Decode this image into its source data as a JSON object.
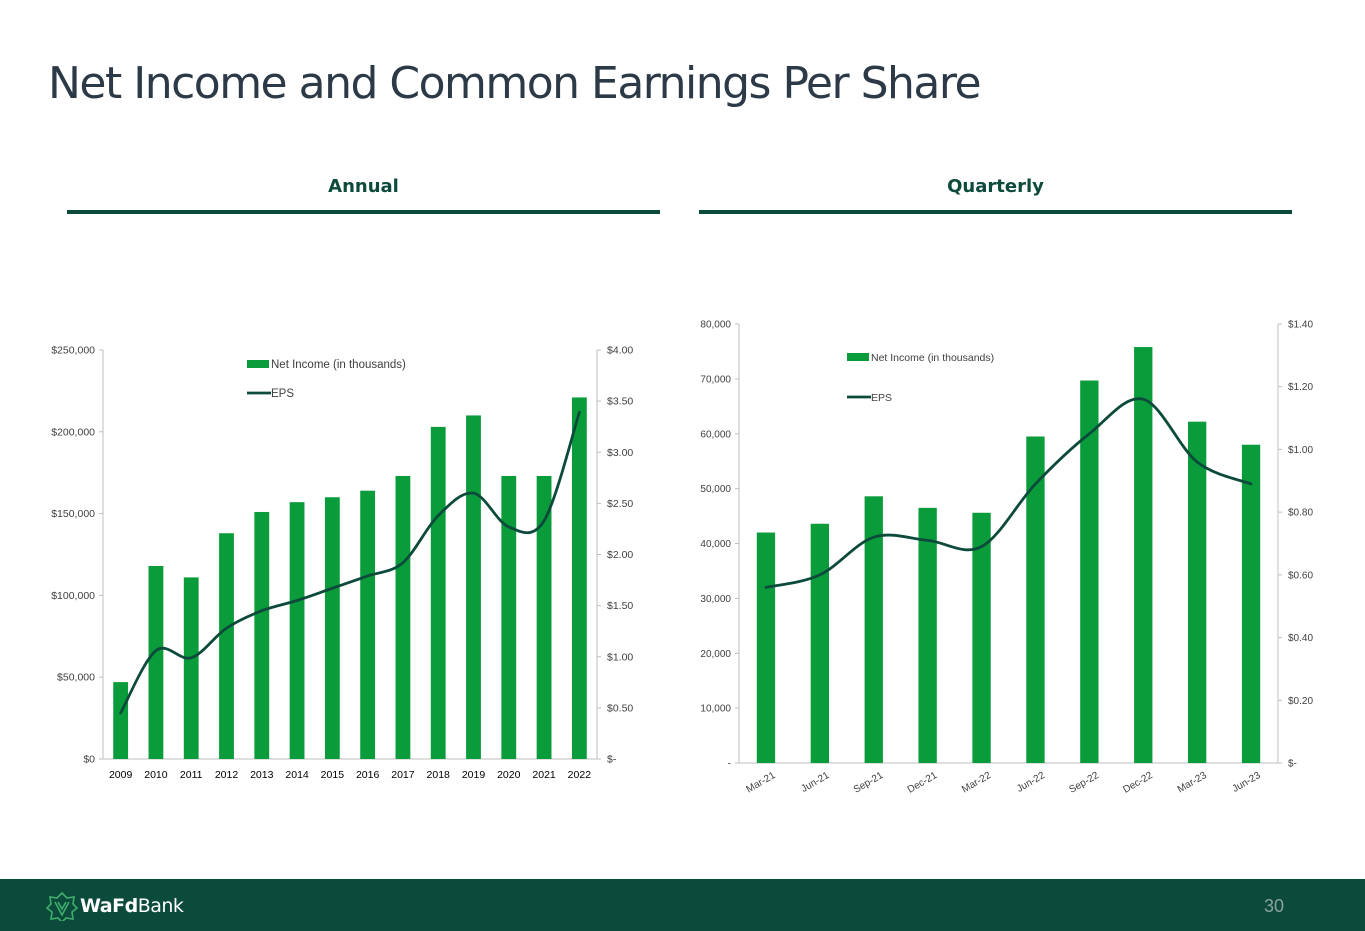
{
  "title": "Net Income and Common Earnings Per Share",
  "sections": {
    "annual": "Annual",
    "quarterly": "Quarterly"
  },
  "colors": {
    "bar": "#0a9b3b",
    "line": "#0c4a3c",
    "header": "#0c4a3c",
    "footer": "#0c4a3c"
  },
  "footer": {
    "brand_bold": "WaFd",
    "brand_rest": "Bank",
    "page": "30",
    "logo_icon": "wafd-logo-icon"
  },
  "chart_data": [
    {
      "id": "annual",
      "type": "bar",
      "categories": [
        "2009",
        "2010",
        "2011",
        "2012",
        "2013",
        "2014",
        "2015",
        "2016",
        "2017",
        "2018",
        "2019",
        "2020",
        "2021",
        "2022"
      ],
      "series": [
        {
          "name": "Net Income (in thousands)",
          "type": "bar",
          "axis": "left",
          "values": [
            47000,
            118000,
            111000,
            138000,
            151000,
            157000,
            160000,
            164000,
            173000,
            203000,
            210000,
            173000,
            173000,
            221000
          ]
        },
        {
          "name": "EPS",
          "type": "line",
          "axis": "right",
          "values": [
            0.45,
            1.06,
            0.99,
            1.28,
            1.45,
            1.55,
            1.67,
            1.79,
            1.92,
            2.38,
            2.6,
            2.27,
            2.33,
            3.39
          ]
        }
      ],
      "ylim_left": [
        0,
        250000
      ],
      "yticks_left": [
        "$0",
        "$50,000",
        "$100,000",
        "$150,000",
        "$200,000",
        "$250,000"
      ],
      "ylim_right": [
        0,
        4.0
      ],
      "yticks_right": [
        "$-",
        "$0.50",
        "$1.00",
        "$1.50",
        "$2.00",
        "$2.50",
        "$3.00",
        "$3.50",
        "$4.00"
      ],
      "legend": "top-center",
      "grid": false
    },
    {
      "id": "quarterly",
      "type": "bar",
      "categories": [
        "Mar-21",
        "Jun-21",
        "Sep-21",
        "Dec-21",
        "Mar-22",
        "Jun-22",
        "Sep-22",
        "Dec-22",
        "Mar-23",
        "Jun-23"
      ],
      "series": [
        {
          "name": "Net Income (in thousands)",
          "type": "bar",
          "axis": "left",
          "values": [
            42000,
            43600,
            48600,
            46500,
            45600,
            59500,
            69700,
            75800,
            62200,
            58000
          ]
        },
        {
          "name": "EPS",
          "type": "line",
          "axis": "right",
          "values": [
            0.56,
            0.6,
            0.72,
            0.71,
            0.69,
            0.89,
            1.05,
            1.16,
            0.96,
            0.89
          ]
        }
      ],
      "ylim_left": [
        0,
        80000
      ],
      "yticks_left": [
        "-",
        "10,000",
        "20,000",
        "30,000",
        "40,000",
        "50,000",
        "60,000",
        "70,000",
        "80,000"
      ],
      "ylim_right": [
        0,
        1.4
      ],
      "yticks_right": [
        "$-",
        "$0.20",
        "$0.40",
        "$0.60",
        "$0.80",
        "$1.00",
        "$1.20",
        "$1.40"
      ],
      "xtick_rotation": "angled",
      "legend": "top-left",
      "grid": false
    }
  ]
}
